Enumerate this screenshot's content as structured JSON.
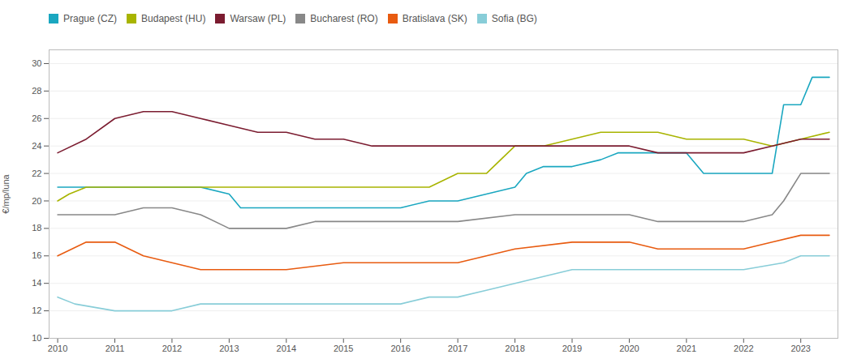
{
  "chart_data": {
    "type": "line",
    "ylabel": "€/mp/luna",
    "ylim": [
      10,
      31
    ],
    "yticks": [
      10,
      12,
      14,
      16,
      18,
      20,
      22,
      24,
      26,
      28,
      30
    ],
    "xlim": [
      2009.85,
      2023.65
    ],
    "xticks": [
      2010,
      2011,
      2012,
      2013,
      2014,
      2015,
      2016,
      2017,
      2018,
      2019,
      2020,
      2021,
      2022,
      2023
    ],
    "grid": true,
    "legend": "top",
    "series": [
      {
        "name": "Prague (CZ)",
        "color": "#1aa7c0",
        "x": [
          2010.0,
          2010.3,
          2011.0,
          2011.5,
          2012.0,
          2012.5,
          2013.0,
          2013.2,
          2013.5,
          2014.0,
          2014.5,
          2015.0,
          2015.5,
          2016.0,
          2016.5,
          2017.0,
          2017.5,
          2018.0,
          2018.2,
          2018.5,
          2019.0,
          2019.5,
          2019.8,
          2020.0,
          2020.5,
          2021.0,
          2021.3,
          2021.5,
          2022.0,
          2022.5,
          2022.7,
          2023.0,
          2023.2,
          2023.5
        ],
        "values": [
          21.0,
          21.0,
          21.0,
          21.0,
          21.0,
          21.0,
          20.5,
          19.5,
          19.5,
          19.5,
          19.5,
          19.5,
          19.5,
          19.5,
          20.0,
          20.0,
          20.5,
          21.0,
          22.0,
          22.5,
          22.5,
          23.0,
          23.5,
          23.5,
          23.5,
          23.5,
          22.0,
          22.0,
          22.0,
          22.0,
          27.0,
          27.0,
          29.0,
          29.0
        ]
      },
      {
        "name": "Budapest (HU)",
        "color": "#a8b400",
        "x": [
          2010.0,
          2010.2,
          2010.5,
          2011.0,
          2012.0,
          2013.0,
          2014.0,
          2015.0,
          2016.0,
          2016.5,
          2017.0,
          2017.5,
          2018.0,
          2018.5,
          2019.0,
          2019.5,
          2020.0,
          2020.5,
          2021.0,
          2021.5,
          2022.0,
          2022.5,
          2023.0,
          2023.5
        ],
        "values": [
          20.0,
          20.5,
          21.0,
          21.0,
          21.0,
          21.0,
          21.0,
          21.0,
          21.0,
          21.0,
          22.0,
          22.0,
          24.0,
          24.0,
          24.5,
          25.0,
          25.0,
          25.0,
          24.5,
          24.5,
          24.5,
          24.0,
          24.5,
          25.0
        ]
      },
      {
        "name": "Warsaw (PL)",
        "color": "#7b1c30",
        "x": [
          2010.0,
          2010.5,
          2011.0,
          2011.5,
          2012.0,
          2012.5,
          2013.0,
          2013.5,
          2014.0,
          2014.5,
          2015.0,
          2015.5,
          2016.0,
          2017.0,
          2018.0,
          2019.0,
          2020.0,
          2020.5,
          2021.0,
          2021.5,
          2022.0,
          2022.5,
          2023.0,
          2023.5
        ],
        "values": [
          23.5,
          24.5,
          26.0,
          26.5,
          26.5,
          26.0,
          25.5,
          25.0,
          25.0,
          24.5,
          24.5,
          24.0,
          24.0,
          24.0,
          24.0,
          24.0,
          24.0,
          23.5,
          23.5,
          23.5,
          23.5,
          24.0,
          24.5,
          24.5
        ]
      },
      {
        "name": "Bucharest (RO)",
        "color": "#888888",
        "x": [
          2010.0,
          2010.5,
          2011.0,
          2011.5,
          2012.0,
          2012.5,
          2013.0,
          2013.5,
          2014.0,
          2014.5,
          2015.0,
          2016.0,
          2017.0,
          2018.0,
          2019.0,
          2020.0,
          2020.5,
          2021.0,
          2022.0,
          2022.5,
          2022.7,
          2023.0,
          2023.5
        ],
        "values": [
          19.0,
          19.0,
          19.0,
          19.5,
          19.5,
          19.0,
          18.0,
          18.0,
          18.0,
          18.5,
          18.5,
          18.5,
          18.5,
          19.0,
          19.0,
          19.0,
          18.5,
          18.5,
          18.5,
          19.0,
          20.0,
          22.0,
          22.0
        ]
      },
      {
        "name": "Bratislava (SK)",
        "color": "#e85b10",
        "x": [
          2010.0,
          2010.5,
          2011.0,
          2011.5,
          2012.0,
          2012.5,
          2013.0,
          2014.0,
          2015.0,
          2016.0,
          2017.0,
          2017.5,
          2018.0,
          2019.0,
          2020.0,
          2020.5,
          2021.0,
          2022.0,
          2022.5,
          2023.0,
          2023.5
        ],
        "values": [
          16.0,
          17.0,
          17.0,
          16.0,
          15.5,
          15.0,
          15.0,
          15.0,
          15.5,
          15.5,
          15.5,
          16.0,
          16.5,
          17.0,
          17.0,
          16.5,
          16.5,
          16.5,
          17.0,
          17.5,
          17.5
        ]
      },
      {
        "name": "Sofia (BG)",
        "color": "#88cdd8",
        "x": [
          2010.0,
          2010.3,
          2011.0,
          2011.5,
          2012.0,
          2012.5,
          2013.0,
          2015.0,
          2015.5,
          2016.0,
          2016.5,
          2017.0,
          2017.5,
          2018.0,
          2018.5,
          2019.0,
          2019.5,
          2020.0,
          2021.0,
          2022.0,
          2022.7,
          2023.0,
          2023.5
        ],
        "values": [
          13.0,
          12.5,
          12.0,
          12.0,
          12.0,
          12.5,
          12.5,
          12.5,
          12.5,
          12.5,
          13.0,
          13.0,
          13.5,
          14.0,
          14.5,
          15.0,
          15.0,
          15.0,
          15.0,
          15.0,
          15.5,
          16.0,
          16.0
        ]
      }
    ]
  }
}
